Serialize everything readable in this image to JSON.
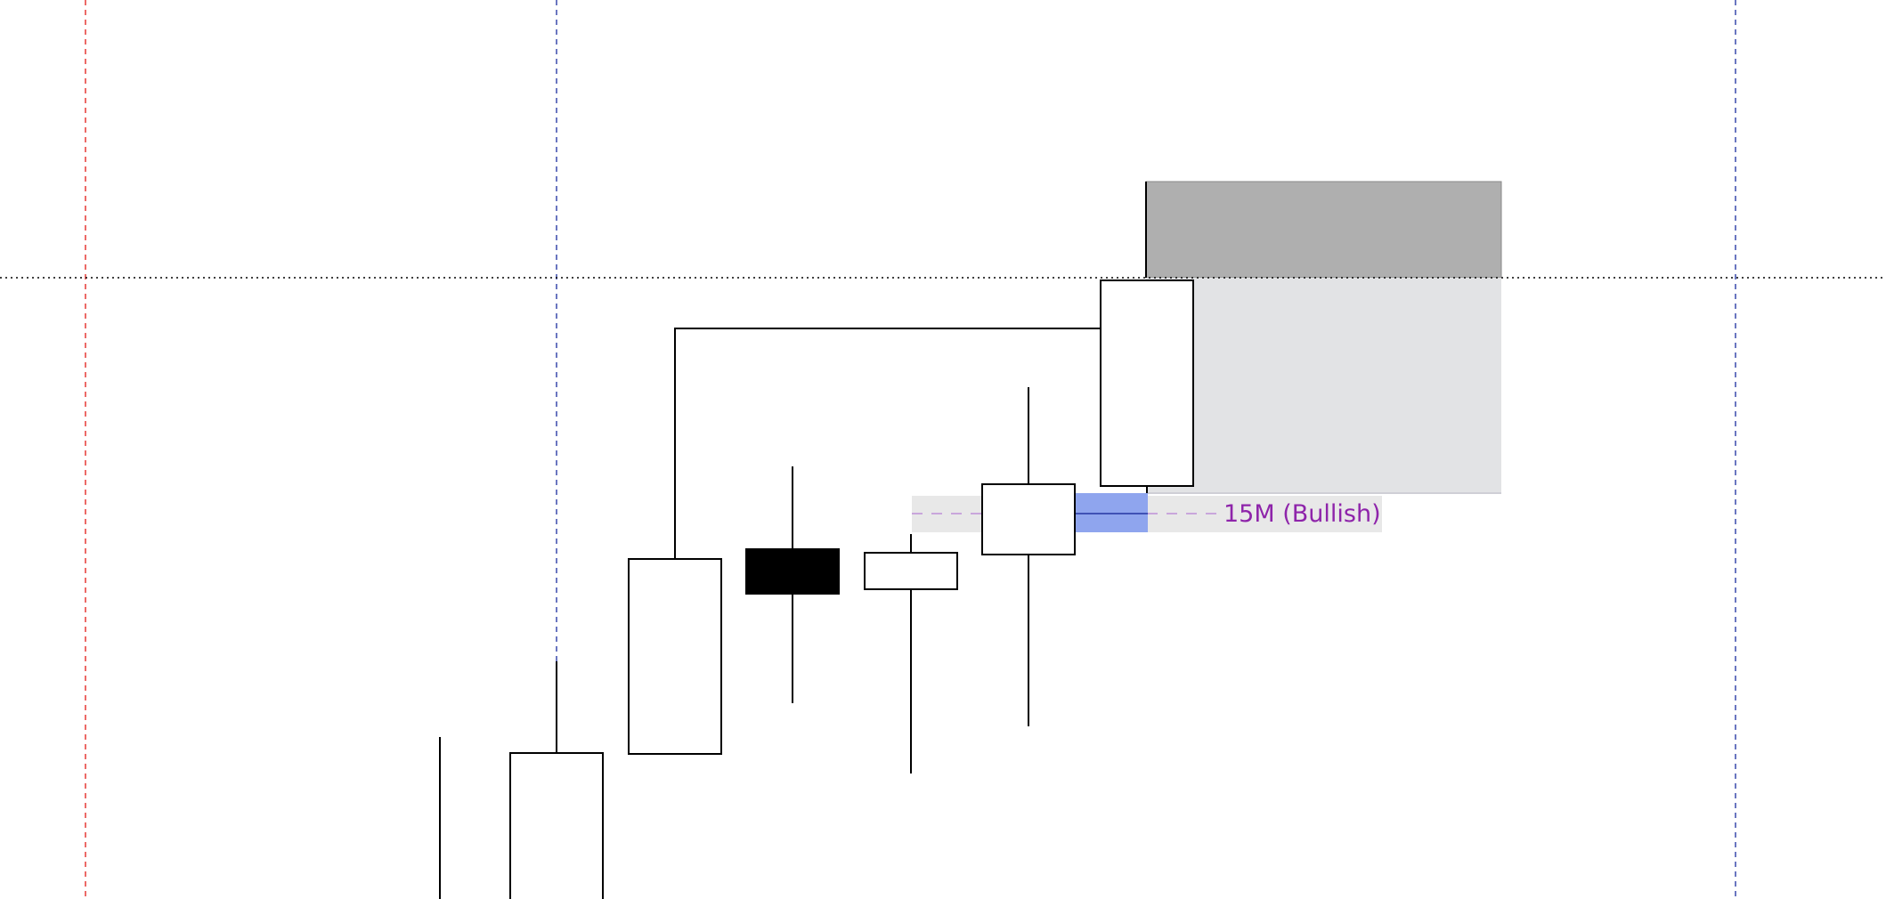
{
  "chart_data": {
    "type": "candlestick",
    "title": "",
    "candles": [
      {
        "direction": "bullish"
      },
      {
        "direction": "bullish"
      },
      {
        "direction": "bullish"
      },
      {
        "direction": "bearish"
      },
      {
        "direction": "bullish"
      },
      {
        "direction": "bullish"
      },
      {
        "direction": "bullish"
      }
    ],
    "annotations": {
      "fvg_label": "15M (Bullish)"
    },
    "grid": false
  },
  "colors": {
    "label_text": "#8e24aa",
    "label_band": "#e8e8e8",
    "fvg_fill": "#8fa5ee",
    "zone_dark": "#afafaf",
    "zone_light": "#e2e3e5",
    "session_line_red": "#e53935",
    "session_line_blue": "#3949ab",
    "candle_up": "#ffffff",
    "candle_down": "#000000"
  }
}
